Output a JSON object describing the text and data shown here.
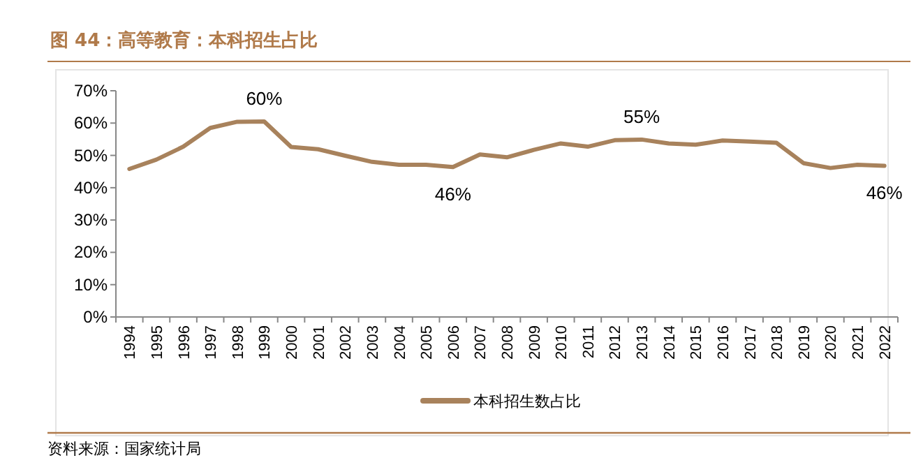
{
  "chart_data": {
    "type": "line",
    "title": "图 44：高等教育：本科招生占比",
    "categories": [
      "1994",
      "1995",
      "1996",
      "1997",
      "1998",
      "1999",
      "2000",
      "2001",
      "2002",
      "2003",
      "2004",
      "2005",
      "2006",
      "2007",
      "2008",
      "2009",
      "2010",
      "2011",
      "2012",
      "2013",
      "2014",
      "2015",
      "2016",
      "2017",
      "2018",
      "2019",
      "2020",
      "2021",
      "2022"
    ],
    "series": [
      {
        "name": "本科招生数占比",
        "color": "#a8825c",
        "values": [
          45.8,
          48.7,
          52.7,
          58.5,
          60.4,
          60.5,
          52.6,
          51.9,
          49.9,
          48.0,
          47.1,
          47.1,
          46.4,
          50.3,
          49.4,
          51.7,
          53.7,
          52.7,
          54.7,
          54.9,
          53.7,
          53.3,
          54.6,
          54.3,
          53.9,
          47.6,
          46.1,
          47.1,
          46.8
        ]
      }
    ],
    "ylim": [
      0,
      70
    ],
    "yticks": [
      {
        "value": 0,
        "label": "0%"
      },
      {
        "value": 10,
        "label": "10%"
      },
      {
        "value": 20,
        "label": "20%"
      },
      {
        "value": 30,
        "label": "30%"
      },
      {
        "value": 40,
        "label": "40%"
      },
      {
        "value": 50,
        "label": "50%"
      },
      {
        "value": 60,
        "label": "60%"
      },
      {
        "value": 70,
        "label": "70%"
      }
    ],
    "annotations": [
      {
        "text": "60%",
        "x": "1999",
        "y": 60.5
      },
      {
        "text": "46%",
        "x": "2006",
        "y": 46.4
      },
      {
        "text": "55%",
        "x": "2013",
        "y": 54.9
      },
      {
        "text": "46%",
        "x": "2022",
        "y": 46.8
      },
      "资料来源：国家统计局"
    ],
    "grid": false,
    "legend": "bottom",
    "marker": "none",
    "line_style": "solid"
  }
}
